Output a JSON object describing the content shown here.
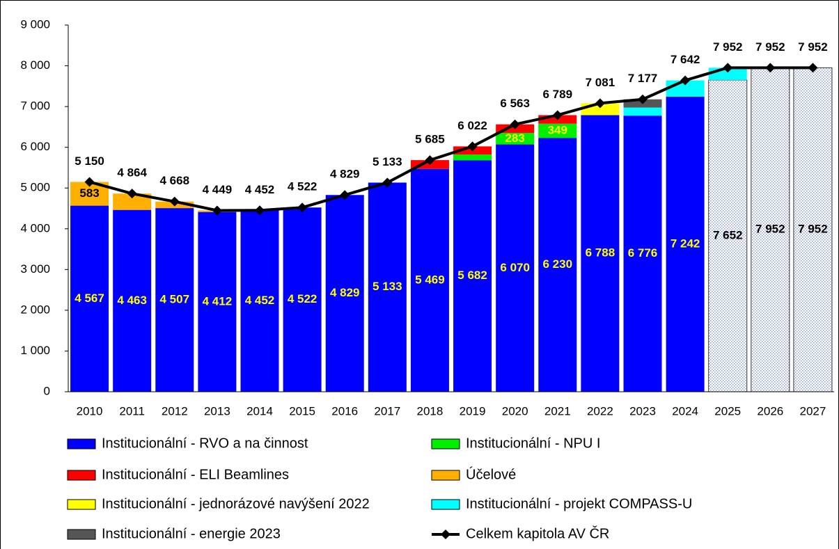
{
  "chart_data": {
    "type": "stacked_bar_line",
    "categories": [
      "2010",
      "2011",
      "2012",
      "2013",
      "2014",
      "2015",
      "2016",
      "2017",
      "2018",
      "2019",
      "2020",
      "2021",
      "2022",
      "2023",
      "2024",
      "2025",
      "2026",
      "2027"
    ],
    "ylim": [
      0,
      9000
    ],
    "yticks": [
      0,
      {
        "value": 1000,
        "label": "1 000"
      },
      {
        "value": 2000,
        "label": "2 000"
      },
      {
        "value": 3000,
        "label": "3 000"
      },
      {
        "value": 4000,
        "label": "4 000"
      },
      {
        "value": 5000,
        "label": "5 000"
      },
      {
        "value": 6000,
        "label": "6 000"
      },
      {
        "value": 7000,
        "label": "7 000"
      },
      {
        "value": 8000,
        "label": "8 000"
      },
      {
        "value": 9000,
        "label": "9 000"
      }
    ],
    "grid": false,
    "legend": "bottom",
    "series": [
      {
        "name": "Institucionální - RVO a na činnost",
        "color": "#0000ff",
        "label_color": "#ffff00",
        "values": [
          4567,
          4463,
          4507,
          4412,
          4452,
          4522,
          4829,
          5133,
          5469,
          5682,
          6070,
          6230,
          6788,
          6776,
          7242,
          7652,
          7952,
          7952
        ],
        "value_labels": [
          "4 567",
          "4 463",
          "4 507",
          "4 412",
          "4 452",
          "4 522",
          "4 829",
          "5 133",
          "5 469",
          "5 682",
          "6 070",
          "6 230",
          "6 788",
          "6 776",
          "7 242",
          "7 652",
          "7 952",
          "7 952"
        ],
        "hatched": [
          false,
          false,
          false,
          false,
          false,
          false,
          false,
          false,
          false,
          false,
          false,
          false,
          false,
          false,
          false,
          true,
          true,
          true
        ]
      },
      {
        "name": "Institucionální - NPU I",
        "color": "#00ee00",
        "label_color": "#ffff00",
        "values": [
          0,
          0,
          0,
          0,
          0,
          0,
          0,
          0,
          0,
          140,
          283,
          349,
          0,
          0,
          0,
          0,
          0,
          0
        ],
        "value_labels": [
          null,
          null,
          null,
          null,
          null,
          null,
          null,
          null,
          null,
          null,
          "283",
          "349",
          null,
          null,
          null,
          null,
          null,
          null
        ]
      },
      {
        "name": "Institucionální - ELI Beamlines",
        "color": "#ff0000",
        "values": [
          0,
          0,
          0,
          0,
          0,
          0,
          0,
          0,
          216,
          200,
          210,
          210,
          0,
          0,
          0,
          0,
          0,
          0
        ]
      },
      {
        "name": "Účelové",
        "color": "#ffb000",
        "label_color": "#000000",
        "values": [
          583,
          401,
          161,
          37,
          0,
          0,
          0,
          0,
          0,
          0,
          0,
          0,
          0,
          0,
          0,
          0,
          0,
          0
        ],
        "value_labels": [
          "583",
          null,
          null,
          null,
          null,
          null,
          null,
          null,
          null,
          null,
          null,
          null,
          null,
          null,
          null,
          null,
          null,
          null
        ]
      },
      {
        "name": "Institucionální - jednorázové navýšení 2022",
        "color": "#ffff00",
        "values": [
          0,
          0,
          0,
          0,
          0,
          0,
          0,
          0,
          0,
          0,
          0,
          0,
          293,
          0,
          0,
          0,
          0,
          0
        ]
      },
      {
        "name": "Institucionální - projekt COMPASS-U",
        "color": "#00ffff",
        "values": [
          0,
          0,
          0,
          0,
          0,
          0,
          0,
          0,
          0,
          0,
          0,
          0,
          0,
          200,
          400,
          300,
          0,
          0
        ]
      },
      {
        "name": "Institucionální - energie 2023",
        "color": "#555555",
        "values": [
          0,
          0,
          0,
          0,
          0,
          0,
          0,
          0,
          0,
          0,
          0,
          0,
          0,
          201,
          0,
          0,
          0,
          0
        ]
      },
      {
        "name": "Celkem kapitola AV ČR",
        "color": "#000000",
        "type": "line",
        "values": [
          5150,
          4864,
          4668,
          4449,
          4452,
          4522,
          4829,
          5133,
          5685,
          6022,
          6563,
          6789,
          7081,
          7177,
          7642,
          7952,
          7952,
          7952
        ],
        "value_labels": [
          "5 150",
          "4 864",
          "4 668",
          "4 449",
          "4 452",
          "4 522",
          "4 829",
          "5 133",
          "5 685",
          "6 022",
          "6 563",
          "6 789",
          "7 081",
          "7 177",
          "7 642",
          "7 952",
          "7 952",
          "7 952"
        ]
      }
    ]
  }
}
